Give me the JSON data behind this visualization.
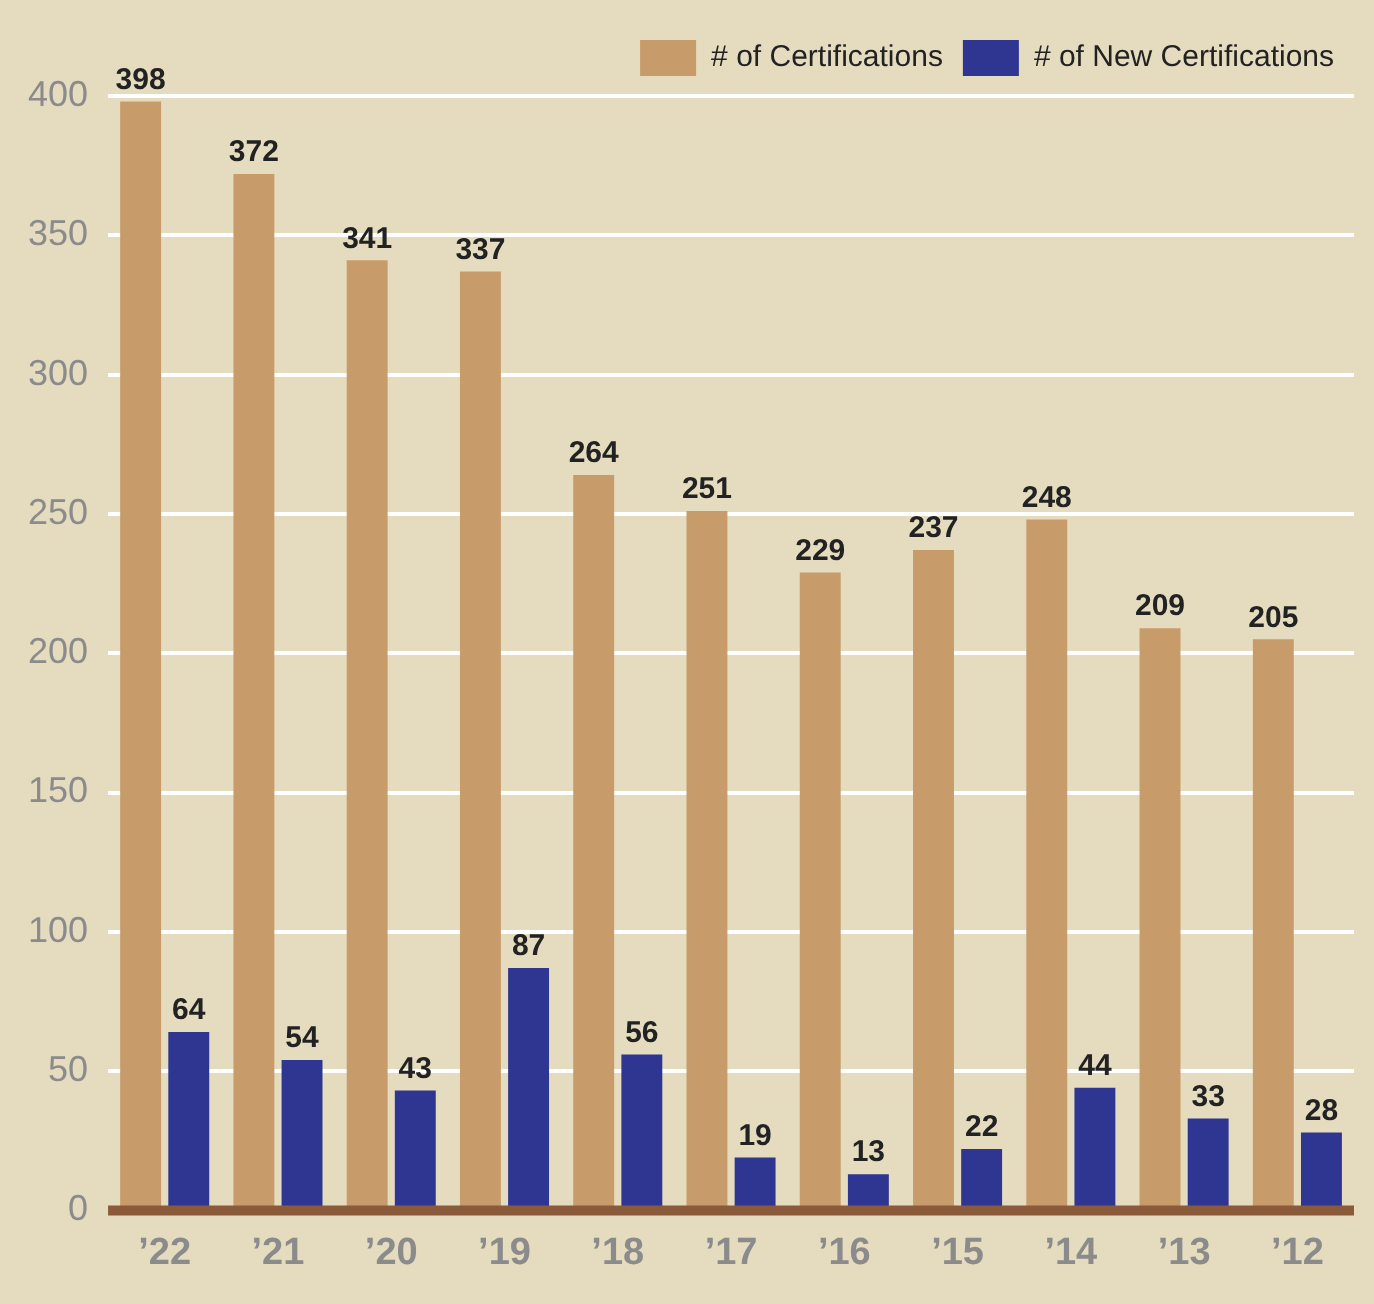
{
  "chart_data": {
    "type": "bar",
    "categories": [
      "’22",
      "’21",
      "’20",
      "’19",
      "’18",
      "’17",
      "’16",
      "’15",
      "’14",
      "’13",
      "’12"
    ],
    "series": [
      {
        "name": "# of Certifications",
        "color": "#c89b6a",
        "values": [
          398,
          372,
          341,
          337,
          264,
          251,
          229,
          237,
          248,
          209,
          205
        ]
      },
      {
        "name": "# of New Certifications",
        "color": "#2e3691",
        "values": [
          64,
          54,
          43,
          87,
          56,
          19,
          13,
          22,
          44,
          33,
          28
        ]
      }
    ],
    "ylim": [
      0,
      400
    ],
    "yticks": [
      0,
      50,
      100,
      150,
      200,
      250,
      300,
      350,
      400
    ],
    "grid": "y",
    "legend": "top right",
    "data_labels": true
  }
}
